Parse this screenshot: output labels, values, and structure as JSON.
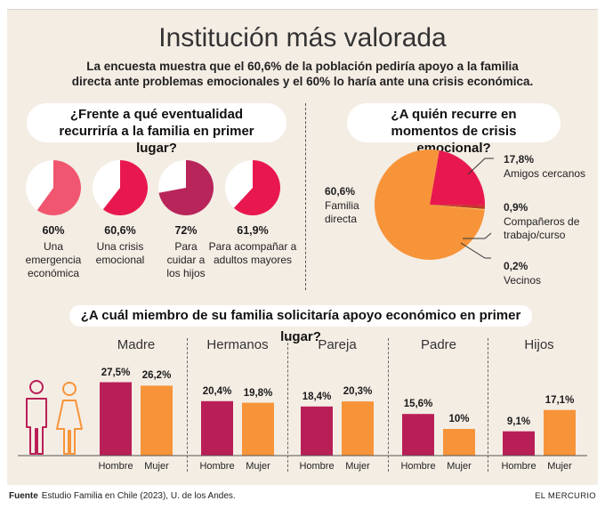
{
  "header": {
    "title": "Institución más valorada",
    "subtitle": "La encuesta muestra que el 60,6% de la población pediría apoyo a la familia directa ante problemas emocionales y el 60% lo haría ante una crisis económica."
  },
  "questions": {
    "q1": "¿Frente a qué eventualidad recurriría a la familia en primer lugar?",
    "q2": "¿A quién recurre en momentos de crisis emocional?",
    "q3": "¿A cuál miembro de su familia solicitaría apoyo económico en primer lugar?"
  },
  "colors": {
    "pink_light": "#f0566f",
    "crimson": "#e8184f",
    "maroon": "#b8255a",
    "orange": "#f7943a",
    "bar_male": "#b91f57",
    "bar_female": "#f7943a",
    "background": "#f4ede4"
  },
  "icons": [
    "man-icon",
    "woman-icon"
  ],
  "footer": {
    "source_label": "Fuente",
    "source_text": "Estudio Familia en Chile (2023), U. de los Andes.",
    "brand": "EL MERCURIO"
  },
  "chart_data": [
    {
      "type": "pie",
      "title": "¿Frente a qué eventualidad recurriría a la familia en primer lugar?",
      "items": [
        {
          "value": 60,
          "value_label": "60%",
          "label": "Una emergencia económica",
          "color": "#f0566f"
        },
        {
          "value": 60.6,
          "value_label": "60,6%",
          "label": "Una crisis emocional",
          "color": "#e8184f"
        },
        {
          "value": 72,
          "value_label": "72%",
          "label": "Para cuidar a los hijos",
          "color": "#b8255a"
        },
        {
          "value": 61.9,
          "value_label": "61,9%",
          "label": "Para acompañar a adultos mayores",
          "color": "#e8184f"
        }
      ]
    },
    {
      "type": "pie",
      "title": "¿A quién recurre en momentos de crisis emocional?",
      "slices": [
        {
          "label": "Familia directa",
          "value": 60.6,
          "value_label": "60,6%",
          "color": "#f7943a"
        },
        {
          "label": "Amigos cercanos",
          "value": 17.8,
          "value_label": "17,8%",
          "color": "#e8184f"
        },
        {
          "label": "Compañeros de trabajo/curso",
          "value": 0.9,
          "value_label": "0,9%",
          "color": "#c0392b"
        },
        {
          "label": "Vecinos",
          "value": 0.2,
          "value_label": "0,2%",
          "color": "#f2c94c"
        }
      ]
    },
    {
      "type": "bar",
      "title": "¿A cuál miembro de su familia solicitaría apoyo económico en primer lugar?",
      "categories": [
        "Madre",
        "Hermanos",
        "Pareja",
        "Padre",
        "Hijos"
      ],
      "x_sublabels": [
        "Hombre",
        "Mujer"
      ],
      "series": [
        {
          "name": "Hombre",
          "values": [
            27.5,
            20.4,
            18.4,
            15.6,
            9.1
          ],
          "labels": [
            "27,5%",
            "20,4%",
            "18,4%",
            "15,6%",
            "9,1%"
          ],
          "color": "#b91f57"
        },
        {
          "name": "Mujer",
          "values": [
            26.2,
            19.8,
            20.3,
            10,
            17.1
          ],
          "labels": [
            "26,2%",
            "19,8%",
            "20,3%",
            "10%",
            "17,1%"
          ],
          "color": "#f7943a"
        }
      ]
    }
  ]
}
